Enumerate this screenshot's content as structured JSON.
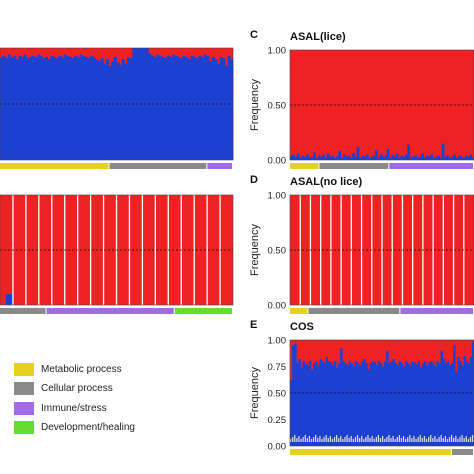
{
  "colors": {
    "red": "#ee2222",
    "blue": "#1e40d0",
    "metabolic": "#e6d21c",
    "cellular": "#8a8a8a",
    "immune": "#a06ae8",
    "development": "#66dd33",
    "white_line": "#d8d8d8"
  },
  "legend": [
    {
      "label": "Metabolic process",
      "color": "#e6d21c",
      "icon": "yellow-swatch"
    },
    {
      "label": "Cellular process",
      "color": "#8a8a8a",
      "icon": "gray-swatch"
    },
    {
      "label": "Immune/stress",
      "color": "#a06ae8",
      "icon": "purple-swatch"
    },
    {
      "label": "Development/healing",
      "color": "#66dd33",
      "icon": "green-swatch"
    }
  ],
  "chart_data": [
    {
      "panel": "A (partially visible)",
      "type": "bar",
      "letter": "",
      "title": "",
      "ylabel": "",
      "ylim": [
        0,
        1
      ],
      "dashed_line_y": 0.5,
      "blue_fraction_profile": [
        0.92,
        0.93,
        0.91,
        0.94,
        0.92,
        0.93,
        0.9,
        0.93,
        0.92,
        0.94,
        0.91,
        0.92,
        0.93,
        0.92,
        0.94,
        0.93,
        0.91,
        0.92,
        0.9,
        0.93,
        0.92,
        0.91,
        0.93,
        0.92,
        0.94,
        0.93,
        0.92,
        0.91,
        0.93,
        0.92,
        0.94,
        0.93,
        0.92,
        0.91,
        0.93,
        0.92,
        0.9,
        0.88,
        0.91,
        0.86,
        0.9,
        0.84,
        0.88,
        0.92,
        0.87,
        0.85,
        0.9,
        0.86,
        0.92,
        0.91,
        1.0,
        1.0,
        1.0,
        1.0,
        1.0,
        1.0,
        0.95,
        0.93,
        0.92,
        0.94,
        0.93,
        0.92,
        0.91,
        0.93,
        0.92,
        0.94,
        0.93,
        0.92,
        0.91,
        0.93,
        0.92,
        0.9,
        0.93,
        0.92,
        0.91,
        0.93,
        0.92,
        0.94,
        0.93,
        0.88,
        0.92,
        0.9,
        0.86,
        0.92,
        0.91,
        0.84,
        0.93,
        0.9
      ],
      "category_bar": [
        {
          "category": "Metabolic process",
          "fraction": 0.47
        },
        {
          "category": "Cellular process",
          "fraction": 0.42
        },
        {
          "category": "Immune/stress",
          "fraction": 0.11
        }
      ]
    },
    {
      "panel": "B (partially visible)",
      "type": "bar",
      "letter": "",
      "title": "",
      "ylabel": "",
      "ylim": [
        0,
        1
      ],
      "dashed_line_y": 0.5,
      "n_groups": 18,
      "blue_fraction_by_group": [
        0.1,
        0,
        0,
        0,
        0,
        0,
        0,
        0,
        0,
        0,
        0,
        0,
        0,
        0,
        0,
        0,
        0,
        0
      ],
      "category_bar": [
        {
          "category": "Cellular process",
          "fraction": 0.2
        },
        {
          "category": "Immune/stress",
          "fraction": 0.55
        },
        {
          "category": "Development/healing",
          "fraction": 0.25
        }
      ]
    },
    {
      "panel": "C",
      "type": "bar",
      "letter": "C",
      "title": "ASAL(lice)",
      "ylabel": "Frequency",
      "ylim": [
        0,
        1
      ],
      "yticks": [
        "0.00",
        "0.50",
        "1.00"
      ],
      "dashed_line_y": 0.5,
      "blue_fraction_profile": [
        0.04,
        0.05,
        0.03,
        0.06,
        0.02,
        0.04,
        0.03,
        0.05,
        0.02,
        0.03,
        0.07,
        0.02,
        0.04,
        0.03,
        0.05,
        0.02,
        0.06,
        0.03,
        0.04,
        0.02,
        0.03,
        0.08,
        0.02,
        0.05,
        0.03,
        0.04,
        0.02,
        0.06,
        0.03,
        0.12,
        0.02,
        0.04,
        0.03,
        0.05,
        0.02,
        0.03,
        0.04,
        0.09,
        0.02,
        0.05,
        0.03,
        0.04,
        0.1,
        0.02,
        0.05,
        0.03,
        0.06,
        0.02,
        0.04,
        0.03,
        0.05,
        0.14,
        0.02,
        0.03,
        0.04,
        0.02,
        0.03,
        0.06,
        0.02,
        0.04,
        0.03,
        0.05,
        0.02,
        0.03,
        0.04,
        0.02,
        0.15,
        0.03,
        0.04,
        0.02,
        0.03,
        0.05,
        0.02,
        0.04,
        0.03,
        0.02,
        0.04,
        0.03,
        0.05,
        0.02
      ],
      "category_bar": [
        {
          "category": "Metabolic process",
          "fraction": 0.16
        },
        {
          "category": "Cellular process",
          "fraction": 0.38
        },
        {
          "category": "Immune/stress",
          "fraction": 0.46
        }
      ]
    },
    {
      "panel": "D",
      "type": "bar",
      "letter": "D",
      "title": "ASAL(no lice)",
      "ylabel": "Frequency",
      "ylim": [
        0,
        1
      ],
      "yticks": [
        "0.00",
        "0.50",
        "1.00"
      ],
      "dashed_line_y": 0.5,
      "n_groups": 18,
      "blue_fraction_by_group": [
        0,
        0,
        0,
        0,
        0,
        0,
        0,
        0,
        0,
        0,
        0,
        0,
        0,
        0,
        0,
        0,
        0,
        0
      ],
      "category_bar": [
        {
          "category": "Metabolic process",
          "fraction": 0.1
        },
        {
          "category": "Cellular process",
          "fraction": 0.5
        },
        {
          "category": "Immune/stress",
          "fraction": 0.4
        }
      ]
    },
    {
      "panel": "E",
      "type": "bar",
      "letter": "E",
      "title": "COS",
      "ylabel": "Frequency",
      "ylim": [
        0,
        1
      ],
      "yticks": [
        "0.00",
        "0.25",
        "0.50",
        "0.75",
        "1.00"
      ],
      "dashed_line_y": 0.5,
      "blue_fraction_profile": [
        0.62,
        0.95,
        0.97,
        0.78,
        0.82,
        0.74,
        0.8,
        0.78,
        0.76,
        0.8,
        0.72,
        0.78,
        0.8,
        0.76,
        0.82,
        0.8,
        0.78,
        0.84,
        0.8,
        0.79,
        0.76,
        0.8,
        0.74,
        0.78,
        0.92,
        0.8,
        0.78,
        0.76,
        0.8,
        0.78,
        0.75,
        0.8,
        0.78,
        0.76,
        0.8,
        0.82,
        0.78,
        0.72,
        0.78,
        0.8,
        0.79,
        0.76,
        0.8,
        0.78,
        0.75,
        0.8,
        0.9,
        0.78,
        0.8,
        0.82,
        0.78,
        0.76,
        0.8,
        0.78,
        0.75,
        0.8,
        0.78,
        0.76,
        0.8,
        0.79,
        0.77,
        0.8,
        0.74,
        0.78,
        0.8,
        0.76,
        0.79,
        0.8,
        0.78,
        0.75,
        0.8,
        0.78,
        0.9,
        0.82,
        0.78,
        0.8,
        0.76,
        0.78,
        0.95,
        0.7,
        0.84,
        0.8,
        0.76,
        0.85,
        0.8,
        0.78,
        0.84,
        0.98
      ],
      "category_bar": [
        {
          "category": "Metabolic process",
          "fraction": 0.88
        },
        {
          "category": "Cellular process",
          "fraction": 0.12
        }
      ]
    }
  ]
}
